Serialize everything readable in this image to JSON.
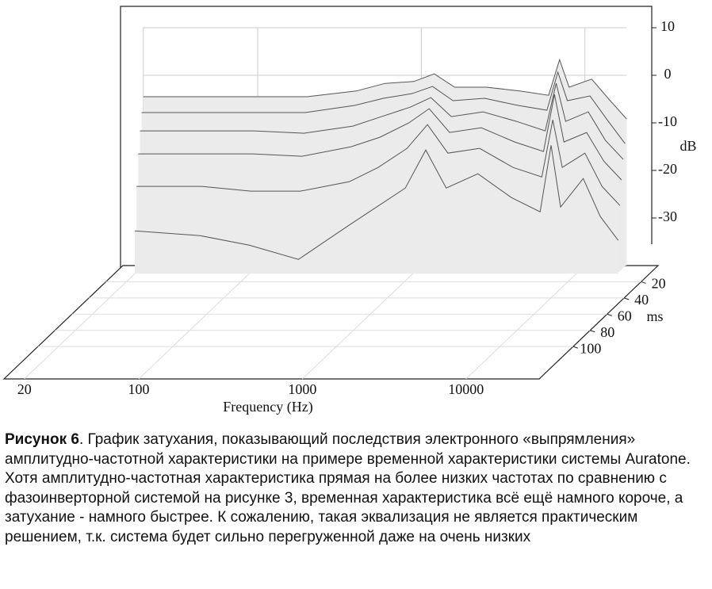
{
  "chart_data": {
    "type": "waterfall",
    "xlabel": "Frequency (Hz)",
    "ylabel": "dB",
    "zlabel": "ms",
    "x": [
      20,
      50,
      100,
      200,
      400,
      600,
      900,
      1200,
      1600,
      2500,
      4000,
      6000,
      7000,
      8000,
      11000,
      14000,
      18000
    ],
    "xlim": [
      15,
      28000
    ],
    "xticks": [
      20,
      100,
      1000,
      10000
    ],
    "ylim": [
      -40,
      14.5
    ],
    "yticks": [
      10,
      0,
      -10,
      -20,
      -30
    ],
    "zlim": [
      0,
      140
    ],
    "zticks": [
      20,
      40,
      60,
      80,
      100
    ],
    "color": "#ebebeb",
    "line_color": "#555555",
    "series": [
      {
        "time": 0,
        "values": [
          -4.5,
          -4.5,
          -4.5,
          -4.5,
          -3.3,
          -1.7,
          -1.3,
          0.3,
          -2.5,
          -2.5,
          -3.3,
          -4.2,
          3.3,
          -2.5,
          -0.8,
          -5,
          -9.2
        ]
      },
      {
        "time": 2,
        "values": [
          -7.5,
          -7.5,
          -7.5,
          -7.5,
          -6,
          -4.5,
          -3.5,
          -2,
          -5,
          -4.5,
          -6,
          -7,
          1,
          -5,
          -4,
          -9,
          -14
        ]
      },
      {
        "time": 4,
        "values": [
          -11,
          -11,
          -11,
          -11.5,
          -10,
          -8,
          -6,
          -4,
          -8,
          -7,
          -9,
          -11,
          -1,
          -9,
          -7,
          -13,
          -17
        ]
      },
      {
        "time": 6,
        "values": [
          -15.5,
          -15.5,
          -15.5,
          -16,
          -14,
          -12,
          -9,
          -6,
          -11,
          -10,
          -13,
          -15,
          -3,
          -13,
          -11,
          -17,
          -21
        ]
      },
      {
        "time": 8,
        "values": [
          -22,
          -22,
          -23,
          -23,
          -21,
          -18,
          -14,
          -9,
          -15,
          -14,
          -18,
          -20,
          -8,
          -18,
          -15,
          -22,
          -26
        ]
      },
      {
        "time": 10,
        "values": [
          -31,
          -32,
          -34,
          -37,
          -30,
          -26,
          -22,
          -14,
          -22,
          -19,
          -24,
          -27,
          -13,
          -26,
          -20,
          -28,
          -33
        ]
      }
    ]
  },
  "caption": {
    "label": "Рисунок 6",
    "text": ". График затухания, показывающий последствия электронного «выпрямления» амплитудно-частотной характеристики на примере временной характеристики системы Auratone. Хотя амплитудно-частотная характеристика прямая на более низких частотах по сравнению с фазоинверторной системой на рисунке 3, временная характеристика всё ещё намного короче, а затухание - намного быстрее. К сожалению, такая эквализация не является практическим решением, т.к. система будет сильно перегруженной даже на очень низких"
  }
}
